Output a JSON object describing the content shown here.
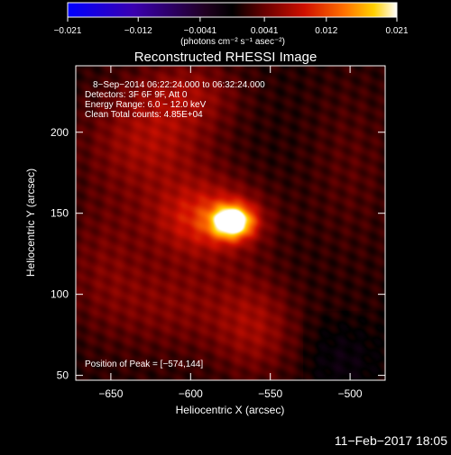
{
  "chart_data": {
    "type": "heatmap",
    "title": "Reconstructed RHESSI Image",
    "xlabel": "Heliocentric X (arcsec)",
    "ylabel": "Heliocentric Y (arcsec)",
    "xlim": [
      -672,
      -478
    ],
    "ylim": [
      47,
      241
    ],
    "x_ticks": [
      -650,
      -600,
      -550,
      -500
    ],
    "y_ticks": [
      50,
      100,
      150,
      200
    ],
    "colorbar": {
      "min": -0.021,
      "max": 0.021,
      "tick_values": [
        -0.021,
        -0.012,
        -0.0041,
        0.0041,
        0.012,
        0.021
      ],
      "tick_labels": [
        "−0.021",
        "−0.012",
        "−0.0041",
        "0.0041",
        "0.012",
        "0.021"
      ],
      "unit_label": "(photons cm⁻² s⁻¹ asec⁻²)"
    },
    "peak_position": [
      -574,
      144
    ],
    "sources": [
      {
        "x": -574,
        "y": 145,
        "amp": 0.021,
        "sx": 9,
        "sy": 7
      },
      {
        "x": -590,
        "y": 147,
        "amp": 0.009,
        "sx": 24,
        "sy": 16
      },
      {
        "x": -625,
        "y": 195,
        "amp": 0.006,
        "sx": 28,
        "sy": 24
      },
      {
        "x": -600,
        "y": 225,
        "amp": 0.004,
        "sx": 22,
        "sy": 14
      },
      {
        "x": -560,
        "y": 80,
        "amp": 0.005,
        "sx": 18,
        "sy": 22
      },
      {
        "x": -610,
        "y": 95,
        "amp": 0.004,
        "sx": 30,
        "sy": 22
      },
      {
        "x": -655,
        "y": 120,
        "amp": 0.003,
        "sx": 18,
        "sy": 30
      },
      {
        "x": -500,
        "y": 180,
        "amp": 0.002,
        "sx": 20,
        "sy": 40
      }
    ],
    "annotations": [
      "8−Sep−2014 06:22:24.000 to 06:32:24.000",
      "Detectors: 3F 6F 9F, Att 0",
      "Energy Range: 6.0 − 12.0 keV",
      "Clean     Total counts: 4.85E+04"
    ],
    "peak_label": "Position of Peak = [−574,144]"
  },
  "footer": {
    "timestamp": "11−Feb−2017 18:05"
  }
}
